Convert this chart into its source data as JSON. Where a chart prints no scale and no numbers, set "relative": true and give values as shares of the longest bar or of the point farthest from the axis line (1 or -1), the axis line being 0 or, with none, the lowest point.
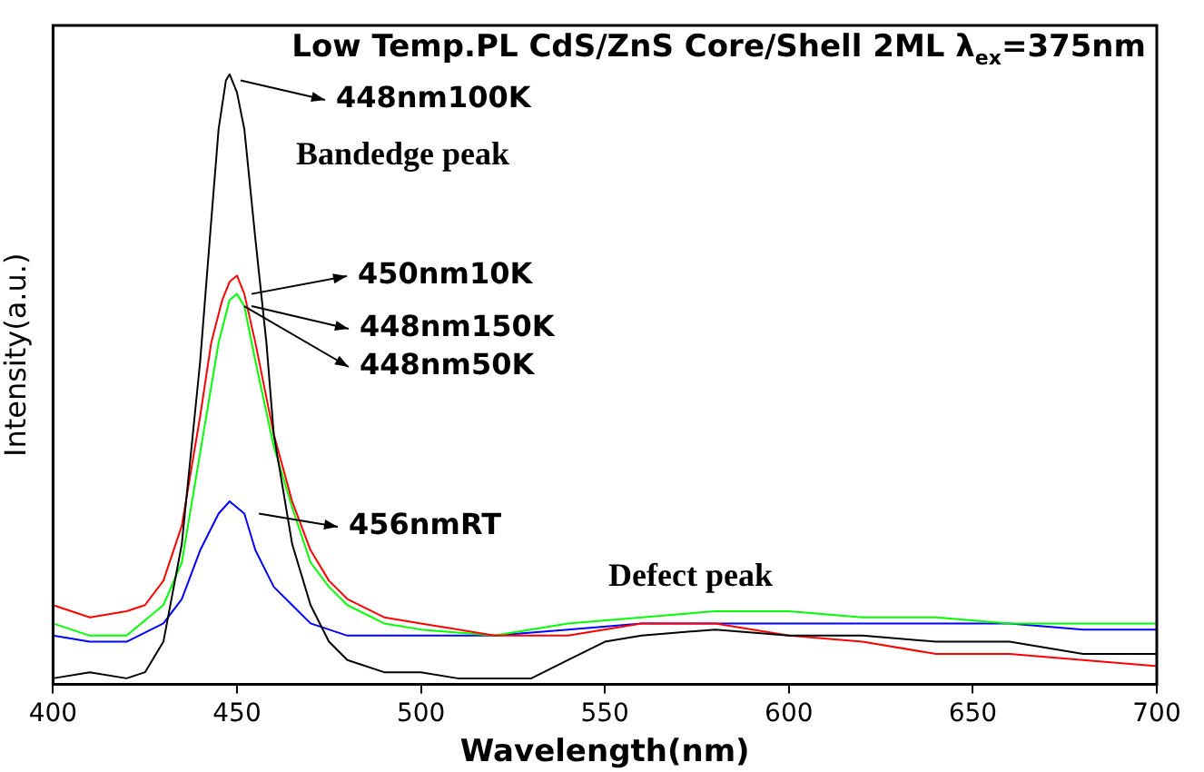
{
  "chart_data": {
    "type": "line",
    "title": "Low Temp.PL CdS/ZnS Core/Shell 2ML λ$_{ex}$=375nm",
    "xlabel": "Wavelength(nm)",
    "ylabel": "Intensity(a.u.)",
    "relative": true,
    "xlim": [
      400,
      700
    ],
    "xticks": [
      400,
      450,
      500,
      550,
      600,
      650,
      700
    ],
    "grid": false,
    "legend": false,
    "marker": "none",
    "line_style": "solid",
    "series": [
      {
        "color": "#000000",
        "x": [
          400,
          410,
          420,
          425,
          430,
          435,
          440,
          443,
          445,
          447,
          448,
          450,
          452,
          455,
          458,
          460,
          465,
          470,
          475,
          480,
          490,
          500,
          510,
          520,
          530,
          540,
          550,
          560,
          580,
          600,
          620,
          640,
          660,
          680,
          700
        ],
        "values": [
          0.01,
          0.02,
          0.01,
          0.02,
          0.07,
          0.23,
          0.53,
          0.76,
          0.91,
          0.99,
          1,
          0.97,
          0.91,
          0.73,
          0.56,
          0.41,
          0.23,
          0.13,
          0.07,
          0.04,
          0.02,
          0.02,
          0.01,
          0.01,
          0.01,
          0.04,
          0.07,
          0.08,
          0.09,
          0.08,
          0.08,
          0.07,
          0.07,
          0.05,
          0.05
        ]
      },
      {
        "color": "#ff0000",
        "x": [
          400,
          410,
          420,
          425,
          430,
          435,
          440,
          443,
          446,
          448,
          450,
          452,
          455,
          458,
          460,
          465,
          470,
          475,
          480,
          490,
          500,
          520,
          540,
          560,
          580,
          600,
          620,
          640,
          660,
          680,
          700
        ],
        "values": [
          0.13,
          0.11,
          0.12,
          0.13,
          0.17,
          0.26,
          0.44,
          0.56,
          0.63,
          0.66,
          0.67,
          0.64,
          0.56,
          0.47,
          0.41,
          0.3,
          0.22,
          0.17,
          0.14,
          0.11,
          0.1,
          0.08,
          0.08,
          0.1,
          0.1,
          0.08,
          0.07,
          0.05,
          0.05,
          0.04,
          0.03
        ]
      },
      {
        "color": "#00ff00",
        "x": [
          400,
          410,
          420,
          430,
          435,
          440,
          445,
          448,
          450,
          452,
          455,
          460,
          465,
          470,
          475,
          480,
          490,
          500,
          520,
          540,
          560,
          580,
          600,
          620,
          640,
          660,
          680,
          700
        ],
        "values": [
          0.1,
          0.08,
          0.08,
          0.13,
          0.2,
          0.38,
          0.56,
          0.63,
          0.64,
          0.62,
          0.53,
          0.39,
          0.29,
          0.2,
          0.16,
          0.13,
          0.1,
          0.09,
          0.08,
          0.1,
          0.11,
          0.12,
          0.12,
          0.11,
          0.11,
          0.1,
          0.1,
          0.1
        ]
      },
      {
        "color": "#0000ff",
        "x": [
          400,
          410,
          420,
          430,
          435,
          440,
          445,
          448,
          450,
          452,
          455,
          460,
          465,
          470,
          480,
          490,
          500,
          520,
          540,
          560,
          580,
          600,
          620,
          640,
          660,
          680,
          700
        ],
        "values": [
          0.08,
          0.07,
          0.07,
          0.1,
          0.14,
          0.22,
          0.28,
          0.3,
          0.29,
          0.28,
          0.22,
          0.16,
          0.13,
          0.1,
          0.08,
          0.08,
          0.08,
          0.08,
          0.09,
          0.1,
          0.1,
          0.1,
          0.1,
          0.1,
          0.1,
          0.09,
          0.09
        ]
      }
    ],
    "annotations": [
      {
        "text": "448nm100K",
        "x": 448,
        "y": 0.99
      },
      "Bandedge peak",
      {
        "text": "450nm10K",
        "x": 451,
        "y": 0.64
      },
      {
        "text": "448nm150K",
        "x": 451,
        "y": 0.62
      },
      {
        "text": "448nm50K",
        "x": 449,
        "y": 0.62
      },
      {
        "text": "456nmRT",
        "x": 453,
        "y": 0.28
      },
      "Defect peak"
    ]
  }
}
